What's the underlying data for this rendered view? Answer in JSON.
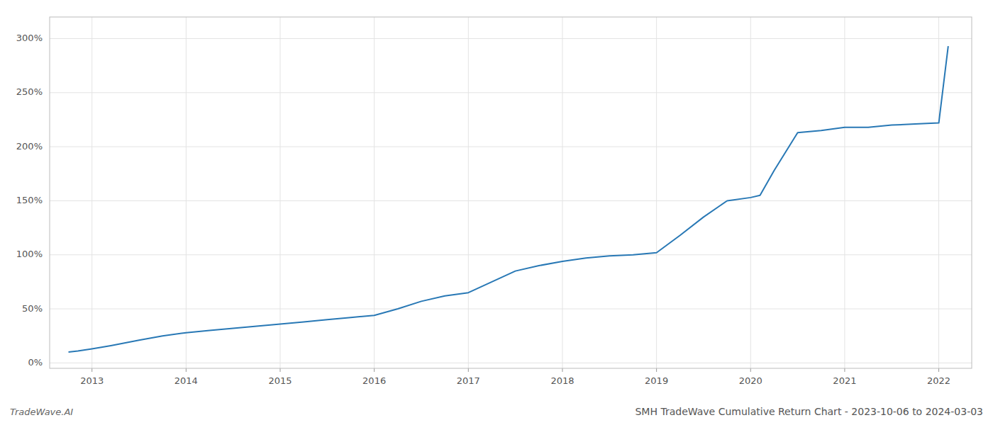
{
  "chart_data": {
    "type": "line",
    "title": "SMH TradeWave Cumulative Return Chart - 2023-10-06 to 2024-03-03",
    "annotations": [
      "TradeWave.AI"
    ],
    "color": "#2878b5",
    "grid": true,
    "x": [
      2012.75,
      2012.85,
      2013.0,
      2013.2,
      2013.5,
      2013.75,
      2014.0,
      2014.25,
      2014.5,
      2014.75,
      2015.0,
      2015.25,
      2015.5,
      2015.75,
      2016.0,
      2016.25,
      2016.5,
      2016.75,
      2017.0,
      2017.25,
      2017.5,
      2017.75,
      2018.0,
      2018.25,
      2018.5,
      2018.75,
      2019.0,
      2019.25,
      2019.5,
      2019.75,
      2020.0,
      2020.1,
      2020.25,
      2020.5,
      2020.75,
      2021.0,
      2021.25,
      2021.5,
      2021.75,
      2022.0,
      2022.1
    ],
    "values": [
      10,
      11,
      13,
      16,
      21,
      25,
      28,
      30,
      32,
      34,
      36,
      38,
      40,
      42,
      44,
      50,
      57,
      62,
      65,
      75,
      85,
      90,
      94,
      97,
      99,
      100,
      102,
      118,
      135,
      150,
      153,
      155,
      178,
      213,
      215,
      218,
      218,
      220,
      221,
      222,
      293
    ],
    "xlim": [
      2012.55,
      2022.35
    ],
    "xticks": [
      2013,
      2014,
      2015,
      2016,
      2017,
      2018,
      2019,
      2020,
      2021,
      2022
    ],
    "ylim": [
      -5,
      320
    ],
    "yticks": [
      {
        "value": 0,
        "label": "0%"
      },
      {
        "value": 50,
        "label": "50%"
      },
      {
        "value": 100,
        "label": "100%"
      },
      {
        "value": 150,
        "label": "150%"
      },
      {
        "value": 200,
        "label": "200%"
      },
      {
        "value": 250,
        "label": "250%"
      },
      {
        "value": 300,
        "label": "300%"
      }
    ]
  }
}
